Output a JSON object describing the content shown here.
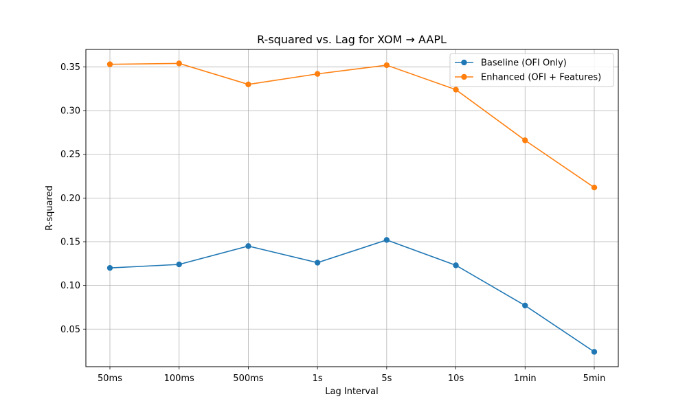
{
  "chart_data": {
    "type": "line",
    "title": "R-squared vs. Lag for XOM → AAPL",
    "xlabel": "Lag Interval",
    "ylabel": "R-squared",
    "categories": [
      "50ms",
      "100ms",
      "500ms",
      "1s",
      "5s",
      "10s",
      "1min",
      "5min"
    ],
    "ylim": [
      0.007,
      0.37
    ],
    "yticks": [
      "0.05",
      "0.10",
      "0.15",
      "0.20",
      "0.25",
      "0.30",
      "0.35"
    ],
    "grid": true,
    "legend_position": "top-right",
    "series": [
      {
        "name": "Baseline (OFI Only)",
        "color": "#1f77b4",
        "values": [
          0.12,
          0.124,
          0.145,
          0.126,
          0.152,
          0.123,
          0.077,
          0.024
        ]
      },
      {
        "name": "Enhanced (OFI + Features)",
        "color": "#ff7f0e",
        "values": [
          0.353,
          0.354,
          0.33,
          0.342,
          0.352,
          0.324,
          0.266,
          0.212
        ]
      }
    ]
  }
}
